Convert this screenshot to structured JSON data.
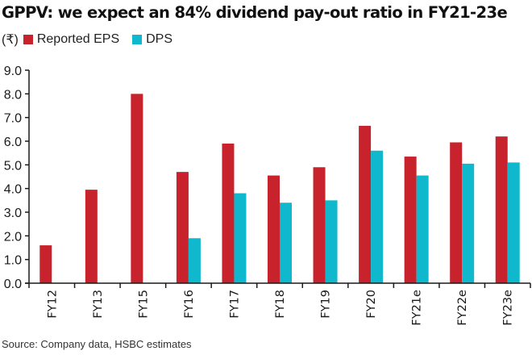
{
  "chart_data": {
    "type": "bar",
    "title": "GPPV: we expect an 84% dividend pay-out ratio in FY21-23e",
    "unit_label": "(₹)",
    "categories": [
      "FY12",
      "FY13",
      "FY15",
      "FY16",
      "FY17",
      "FY18",
      "FY19",
      "FY20",
      "FY21e",
      "FY22e",
      "FY23e"
    ],
    "series": [
      {
        "name": "Reported EPS",
        "color": "#c8232c",
        "values": [
          1.6,
          3.95,
          8.0,
          4.7,
          5.9,
          4.55,
          4.9,
          6.65,
          5.35,
          5.95,
          6.2
        ]
      },
      {
        "name": "DPS",
        "color": "#0fb8cc",
        "values": [
          null,
          null,
          null,
          1.9,
          3.8,
          3.4,
          3.5,
          5.6,
          4.55,
          5.05,
          5.1
        ]
      }
    ],
    "yticks": [
      "0.0",
      "1.0",
      "2.0",
      "3.0",
      "4.0",
      "5.0",
      "6.0",
      "7.0",
      "8.0",
      "9.0"
    ],
    "ylim": [
      0,
      9
    ],
    "xlabel": "",
    "ylabel": "",
    "grid": false,
    "legend_position": "top-left",
    "source": "Source: Company data, HSBC estimates"
  }
}
